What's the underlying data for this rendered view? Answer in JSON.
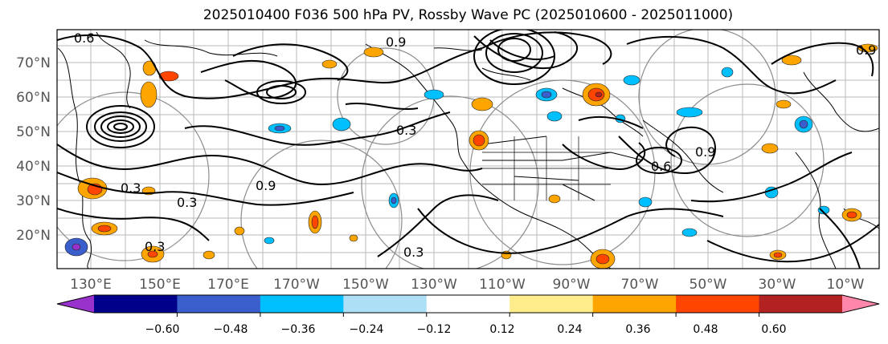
{
  "title": "2025010400 F036 500 hPa PV, Rossby Wave PC (2025010600 - 2025011000)",
  "longitude_labels": [
    "130°E",
    "150°E",
    "170°E",
    "170°W",
    "150°W",
    "130°W",
    "110°W",
    "90°W",
    "70°W",
    "50°W",
    "30°W",
    "10°W"
  ],
  "latitude_labels": [
    "70°N",
    "60°N",
    "50°N",
    "40°N",
    "30°N",
    "20°N"
  ],
  "contour_labels": [
    "0.6",
    "0.9",
    "0.9",
    "0.3",
    "0.3",
    "0.9",
    "0.3",
    "0.3",
    "0.3",
    "0.6",
    "0.9"
  ],
  "colorbar": {
    "tick_labels": [
      "−0.60",
      "−0.48",
      "−0.36",
      "−0.24",
      "−0.12",
      "0.12",
      "0.24",
      "0.36",
      "0.48",
      "0.60"
    ],
    "colors": [
      "#9932CC",
      "#00008B",
      "#3A5FCD",
      "#00BFFF",
      "#ADDFF7",
      "#FFFFFF",
      "#FFEC8B",
      "#FFA500",
      "#FF4500",
      "#B22222",
      "#FF88AA"
    ]
  },
  "colors": {
    "positive_anomaly": "#FFA500",
    "positive_core": "#FF4500",
    "negative_anomaly": "#00BFFF",
    "negative_core": "#3A5FCD"
  }
}
